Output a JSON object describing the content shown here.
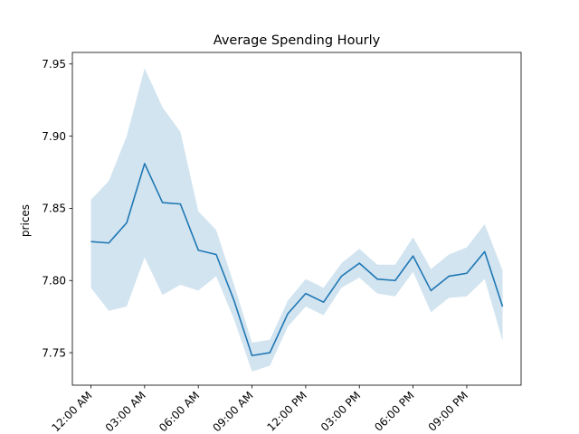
{
  "chart_data": {
    "type": "line",
    "title": "Average Spending Hourly",
    "xlabel": "",
    "ylabel": "prices",
    "x": [
      0,
      1,
      2,
      3,
      4,
      5,
      6,
      7,
      8,
      9,
      10,
      11,
      12,
      13,
      14,
      15,
      16,
      17,
      18,
      19,
      20,
      21,
      22,
      23
    ],
    "x_tick_positions": [
      0,
      3,
      6,
      9,
      12,
      15,
      18,
      21
    ],
    "x_tick_labels": [
      "12:00 AM",
      "03:00 AM",
      "06:00 AM",
      "09:00 AM",
      "12:00 PM",
      "03:00 PM",
      "06:00 PM",
      "09:00 PM"
    ],
    "ylim": [
      7.7275,
      7.958
    ],
    "y_ticks": [
      7.75,
      7.8,
      7.85,
      7.9,
      7.95
    ],
    "y_tick_labels": [
      "7.75",
      "7.80",
      "7.85",
      "7.90",
      "7.95"
    ],
    "series": [
      {
        "values": [
          7.827,
          7.826,
          7.84,
          7.881,
          7.854,
          7.853,
          7.821,
          7.818,
          7.786,
          7.748,
          7.75,
          7.777,
          7.791,
          7.785,
          7.803,
          7.812,
          7.801,
          7.8,
          7.817,
          7.793,
          7.803,
          7.805,
          7.82,
          7.782
        ],
        "ci_lower": [
          7.795,
          7.779,
          7.782,
          7.816,
          7.79,
          7.797,
          7.793,
          7.803,
          7.773,
          7.737,
          7.741,
          7.768,
          7.782,
          7.776,
          7.795,
          7.802,
          7.791,
          7.789,
          7.806,
          7.778,
          7.788,
          7.789,
          7.801,
          7.758
        ],
        "ci_upper": [
          7.856,
          7.869,
          7.9,
          7.947,
          7.92,
          7.903,
          7.848,
          7.835,
          7.797,
          7.757,
          7.759,
          7.786,
          7.801,
          7.795,
          7.812,
          7.822,
          7.811,
          7.811,
          7.83,
          7.808,
          7.818,
          7.823,
          7.839,
          7.807
        ]
      }
    ],
    "colors": {
      "line": "#1f77b4",
      "band": "#1f77b4"
    },
    "grid": false,
    "legend": "none"
  }
}
